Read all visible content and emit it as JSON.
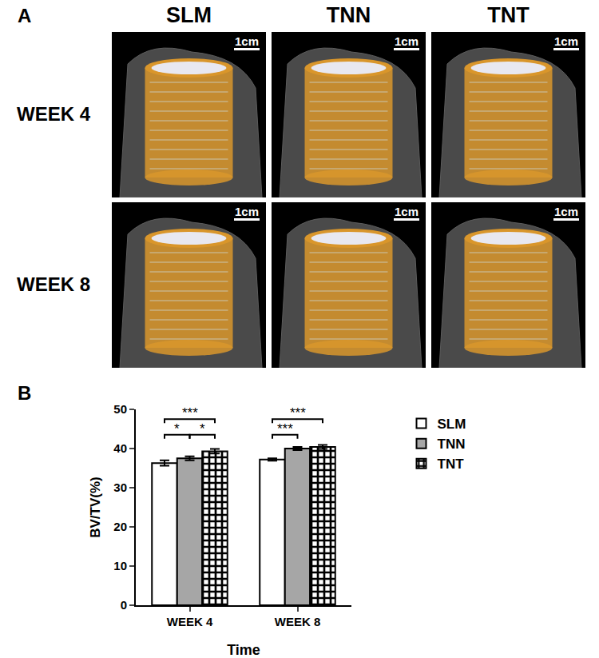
{
  "panel_a": {
    "label": "A",
    "columns": [
      "SLM",
      "TNN",
      "TNT"
    ],
    "rows": [
      "WEEK 4",
      "WEEK 8"
    ],
    "scale_bar": "1cm"
  },
  "panel_b_label": "B",
  "chart_data": {
    "type": "bar",
    "categories": [
      "WEEK 4",
      "WEEK 8"
    ],
    "xlabel": "Time",
    "ylabel": "BV/TV(%)",
    "ylim": [
      0,
      50
    ],
    "yticks": [
      0,
      10,
      20,
      30,
      40,
      50
    ],
    "legend": "right",
    "series": [
      {
        "name": "SLM",
        "color": "#ffffff",
        "values": [
          36.3,
          37.2
        ],
        "errors": [
          0.7,
          0.3
        ]
      },
      {
        "name": "TNN",
        "color": "#a6a6a6",
        "values": [
          37.5,
          40.0
        ],
        "errors": [
          0.5,
          0.4
        ]
      },
      {
        "name": "TNT",
        "color": "#ffffff",
        "marker": "checkered",
        "values": [
          39.3,
          40.4
        ],
        "errors": [
          0.6,
          0.5
        ]
      }
    ],
    "comparisons": [
      {
        "category": "WEEK 4",
        "from": "SLM",
        "to": "TNT",
        "label": "***"
      },
      {
        "category": "WEEK 4",
        "from": "SLM",
        "to": "TNN",
        "label": "*"
      },
      {
        "category": "WEEK 4",
        "from": "TNN",
        "to": "TNT",
        "label": "*"
      },
      {
        "category": "WEEK 8",
        "from": "SLM",
        "to": "TNT",
        "label": "***"
      },
      {
        "category": "WEEK 8",
        "from": "SLM",
        "to": "TNN",
        "label": "***"
      }
    ]
  }
}
